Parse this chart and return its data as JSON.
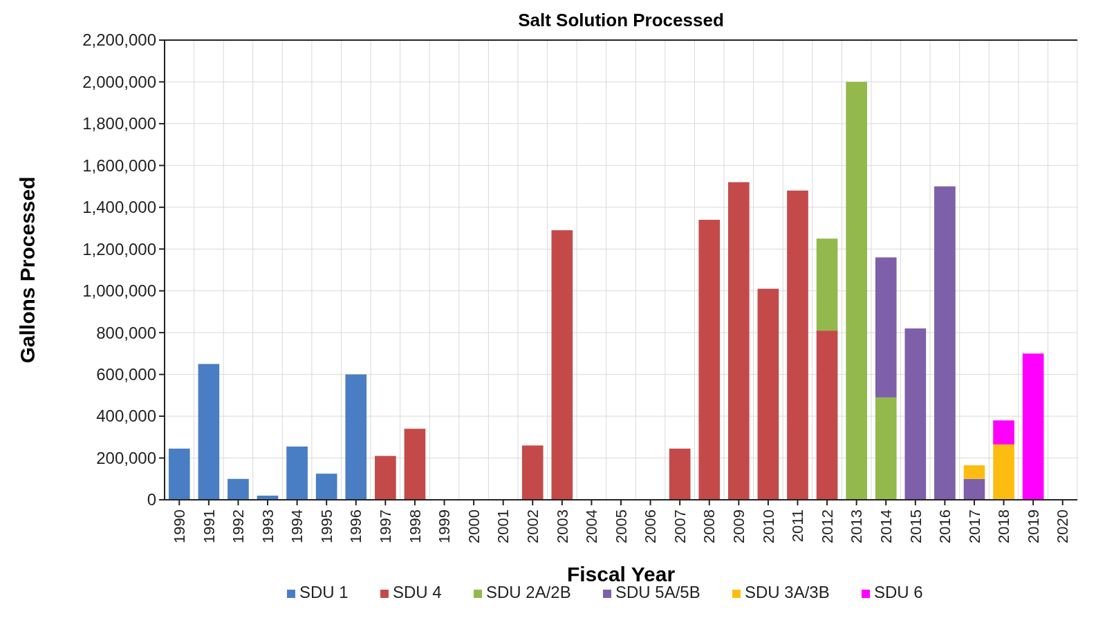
{
  "chart_data": {
    "type": "bar",
    "title": "Salt Solution Processed",
    "xlabel": "Fiscal Year",
    "ylabel": "Gallons Processed",
    "stacked": true,
    "grid": true,
    "legend": "bottom",
    "categories": [
      "1990",
      "1991",
      "1992",
      "1993",
      "1994",
      "1995",
      "1996",
      "1997",
      "1998",
      "1999",
      "2000",
      "2001",
      "2002",
      "2003",
      "2004",
      "2005",
      "2006",
      "2007",
      "2008",
      "2009",
      "2010",
      "2011",
      "2012",
      "2013",
      "2014",
      "2015",
      "2016",
      "2017",
      "2018",
      "2019",
      "2020"
    ],
    "ylim": [
      0,
      2200000
    ],
    "yticks": [
      {
        "value": 0,
        "label": "0"
      },
      {
        "value": 200000,
        "label": "200,000"
      },
      {
        "value": 400000,
        "label": "400,000"
      },
      {
        "value": 600000,
        "label": "600,000"
      },
      {
        "value": 800000,
        "label": "800,000"
      },
      {
        "value": 1000000,
        "label": "1,000,000"
      },
      {
        "value": 1200000,
        "label": "1,200,000"
      },
      {
        "value": 1400000,
        "label": "1,400,000"
      },
      {
        "value": 1600000,
        "label": "1,600,000"
      },
      {
        "value": 1800000,
        "label": "1,800,000"
      },
      {
        "value": 2000000,
        "label": "2,000,000"
      },
      {
        "value": 2200000,
        "label": "2,200,000"
      }
    ],
    "series": [
      {
        "name": "SDU 1",
        "color": "#4a7ec4",
        "values": [
          245000,
          650000,
          100000,
          20000,
          255000,
          125000,
          600000,
          null,
          null,
          null,
          null,
          null,
          null,
          null,
          null,
          null,
          null,
          null,
          null,
          null,
          null,
          null,
          null,
          null,
          null,
          null,
          null,
          null,
          null,
          null,
          null
        ]
      },
      {
        "name": "SDU 4",
        "color": "#c44a4a",
        "values": [
          null,
          null,
          null,
          null,
          null,
          null,
          null,
          210000,
          340000,
          null,
          null,
          null,
          260000,
          1290000,
          null,
          null,
          null,
          245000,
          1340000,
          1520000,
          1010000,
          1480000,
          810000,
          null,
          null,
          null,
          null,
          null,
          null,
          null,
          null
        ]
      },
      {
        "name": "SDU 2A/2B",
        "color": "#93b94c",
        "values": [
          null,
          null,
          null,
          null,
          null,
          null,
          null,
          null,
          null,
          null,
          null,
          null,
          null,
          null,
          null,
          null,
          null,
          null,
          null,
          null,
          null,
          null,
          440000,
          2000000,
          490000,
          null,
          null,
          null,
          null,
          null,
          null
        ]
      },
      {
        "name": "SDU 5A/5B",
        "color": "#7e5fa9",
        "values": [
          null,
          null,
          null,
          null,
          null,
          null,
          null,
          null,
          null,
          null,
          null,
          null,
          null,
          null,
          null,
          null,
          null,
          null,
          null,
          null,
          null,
          null,
          null,
          null,
          670000,
          820000,
          1500000,
          100000,
          null,
          null,
          null
        ]
      },
      {
        "name": "SDU 3A/3B",
        "color": "#fdbd10",
        "values": [
          null,
          null,
          null,
          null,
          null,
          null,
          null,
          null,
          null,
          null,
          null,
          null,
          null,
          null,
          null,
          null,
          null,
          null,
          null,
          null,
          null,
          null,
          null,
          null,
          null,
          null,
          null,
          65000,
          265000,
          null,
          null
        ]
      },
      {
        "name": "SDU 6",
        "color": "#ff00ff",
        "values": [
          null,
          null,
          null,
          null,
          null,
          null,
          null,
          null,
          null,
          null,
          null,
          null,
          null,
          null,
          null,
          null,
          null,
          null,
          null,
          null,
          null,
          null,
          null,
          null,
          null,
          null,
          null,
          null,
          115000,
          700000,
          null
        ]
      }
    ]
  }
}
